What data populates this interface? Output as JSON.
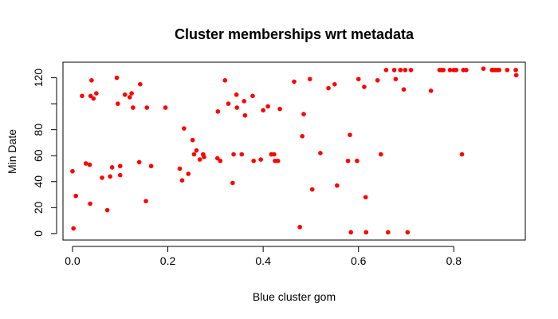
{
  "chart_data": {
    "type": "scatter",
    "title": "Cluster memberships wrt metadata",
    "xlabel": "Blue cluster gom",
    "ylabel": "Min Date",
    "xlim": [
      -0.02,
      0.95
    ],
    "ylim": [
      -5,
      132
    ],
    "x_ticks": [
      0.0,
      0.2,
      0.4,
      0.6,
      0.8
    ],
    "x_tick_labels": [
      "0.0",
      "0.2",
      "0.4",
      "0.6",
      "0.8"
    ],
    "y_ticks": [
      0,
      20,
      40,
      60,
      80,
      100,
      120
    ],
    "y_tick_labels": [
      "0",
      "20",
      "40",
      "60",
      "80",
      "",
      "120"
    ],
    "grid": false,
    "point_color": "#ff0000",
    "points": [
      {
        "x": 0.002,
        "y": 4
      },
      {
        "x": 0.0,
        "y": 48
      },
      {
        "x": 0.007,
        "y": 29
      },
      {
        "x": 0.02,
        "y": 106
      },
      {
        "x": 0.028,
        "y": 54
      },
      {
        "x": 0.036,
        "y": 53
      },
      {
        "x": 0.037,
        "y": 23
      },
      {
        "x": 0.038,
        "y": 106
      },
      {
        "x": 0.04,
        "y": 118
      },
      {
        "x": 0.044,
        "y": 104
      },
      {
        "x": 0.05,
        "y": 108
      },
      {
        "x": 0.062,
        "y": 43
      },
      {
        "x": 0.073,
        "y": 18
      },
      {
        "x": 0.079,
        "y": 44
      },
      {
        "x": 0.083,
        "y": 51
      },
      {
        "x": 0.093,
        "y": 120
      },
      {
        "x": 0.095,
        "y": 100
      },
      {
        "x": 0.1,
        "y": 52
      },
      {
        "x": 0.1,
        "y": 45
      },
      {
        "x": 0.11,
        "y": 107
      },
      {
        "x": 0.12,
        "y": 105
      },
      {
        "x": 0.124,
        "y": 108
      },
      {
        "x": 0.127,
        "y": 97
      },
      {
        "x": 0.14,
        "y": 55
      },
      {
        "x": 0.142,
        "y": 115
      },
      {
        "x": 0.154,
        "y": 25
      },
      {
        "x": 0.156,
        "y": 97
      },
      {
        "x": 0.165,
        "y": 52
      },
      {
        "x": 0.195,
        "y": 97
      },
      {
        "x": 0.225,
        "y": 50
      },
      {
        "x": 0.23,
        "y": 41
      },
      {
        "x": 0.234,
        "y": 81
      },
      {
        "x": 0.243,
        "y": 46
      },
      {
        "x": 0.252,
        "y": 72
      },
      {
        "x": 0.255,
        "y": 61
      },
      {
        "x": 0.26,
        "y": 64
      },
      {
        "x": 0.267,
        "y": 57
      },
      {
        "x": 0.274,
        "y": 61
      },
      {
        "x": 0.276,
        "y": 59
      },
      {
        "x": 0.304,
        "y": 58
      },
      {
        "x": 0.305,
        "y": 94
      },
      {
        "x": 0.31,
        "y": 56
      },
      {
        "x": 0.32,
        "y": 118
      },
      {
        "x": 0.327,
        "y": 100
      },
      {
        "x": 0.336,
        "y": 39
      },
      {
        "x": 0.338,
        "y": 61
      },
      {
        "x": 0.344,
        "y": 107
      },
      {
        "x": 0.345,
        "y": 97
      },
      {
        "x": 0.355,
        "y": 61
      },
      {
        "x": 0.36,
        "y": 102
      },
      {
        "x": 0.362,
        "y": 91
      },
      {
        "x": 0.378,
        "y": 106
      },
      {
        "x": 0.38,
        "y": 56
      },
      {
        "x": 0.395,
        "y": 57
      },
      {
        "x": 0.4,
        "y": 95
      },
      {
        "x": 0.41,
        "y": 98
      },
      {
        "x": 0.417,
        "y": 61
      },
      {
        "x": 0.423,
        "y": 61
      },
      {
        "x": 0.425,
        "y": 56
      },
      {
        "x": 0.431,
        "y": 56
      },
      {
        "x": 0.435,
        "y": 96
      },
      {
        "x": 0.465,
        "y": 117
      },
      {
        "x": 0.477,
        "y": 5
      },
      {
        "x": 0.482,
        "y": 75
      },
      {
        "x": 0.485,
        "y": 92
      },
      {
        "x": 0.498,
        "y": 119
      },
      {
        "x": 0.503,
        "y": 34
      },
      {
        "x": 0.52,
        "y": 62
      },
      {
        "x": 0.537,
        "y": 112
      },
      {
        "x": 0.55,
        "y": 115
      },
      {
        "x": 0.555,
        "y": 37
      },
      {
        "x": 0.578,
        "y": 56
      },
      {
        "x": 0.582,
        "y": 76
      },
      {
        "x": 0.584,
        "y": 1
      },
      {
        "x": 0.597,
        "y": 56
      },
      {
        "x": 0.6,
        "y": 119
      },
      {
        "x": 0.612,
        "y": 113
      },
      {
        "x": 0.615,
        "y": 28
      },
      {
        "x": 0.616,
        "y": 1
      },
      {
        "x": 0.64,
        "y": 118
      },
      {
        "x": 0.647,
        "y": 61
      },
      {
        "x": 0.658,
        "y": 126
      },
      {
        "x": 0.662,
        "y": 1
      },
      {
        "x": 0.675,
        "y": 126
      },
      {
        "x": 0.678,
        "y": 119
      },
      {
        "x": 0.688,
        "y": 126
      },
      {
        "x": 0.695,
        "y": 111
      },
      {
        "x": 0.698,
        "y": 126
      },
      {
        "x": 0.703,
        "y": 1
      },
      {
        "x": 0.71,
        "y": 126
      },
      {
        "x": 0.752,
        "y": 110
      },
      {
        "x": 0.77,
        "y": 126
      },
      {
        "x": 0.774,
        "y": 126
      },
      {
        "x": 0.778,
        "y": 126
      },
      {
        "x": 0.792,
        "y": 126
      },
      {
        "x": 0.8,
        "y": 126
      },
      {
        "x": 0.805,
        "y": 126
      },
      {
        "x": 0.817,
        "y": 61
      },
      {
        "x": 0.82,
        "y": 126
      },
      {
        "x": 0.826,
        "y": 126
      },
      {
        "x": 0.862,
        "y": 127
      },
      {
        "x": 0.88,
        "y": 126
      },
      {
        "x": 0.884,
        "y": 126
      },
      {
        "x": 0.888,
        "y": 126
      },
      {
        "x": 0.892,
        "y": 126
      },
      {
        "x": 0.895,
        "y": 126
      },
      {
        "x": 0.912,
        "y": 126
      },
      {
        "x": 0.93,
        "y": 126
      },
      {
        "x": 0.931,
        "y": 122
      }
    ]
  }
}
